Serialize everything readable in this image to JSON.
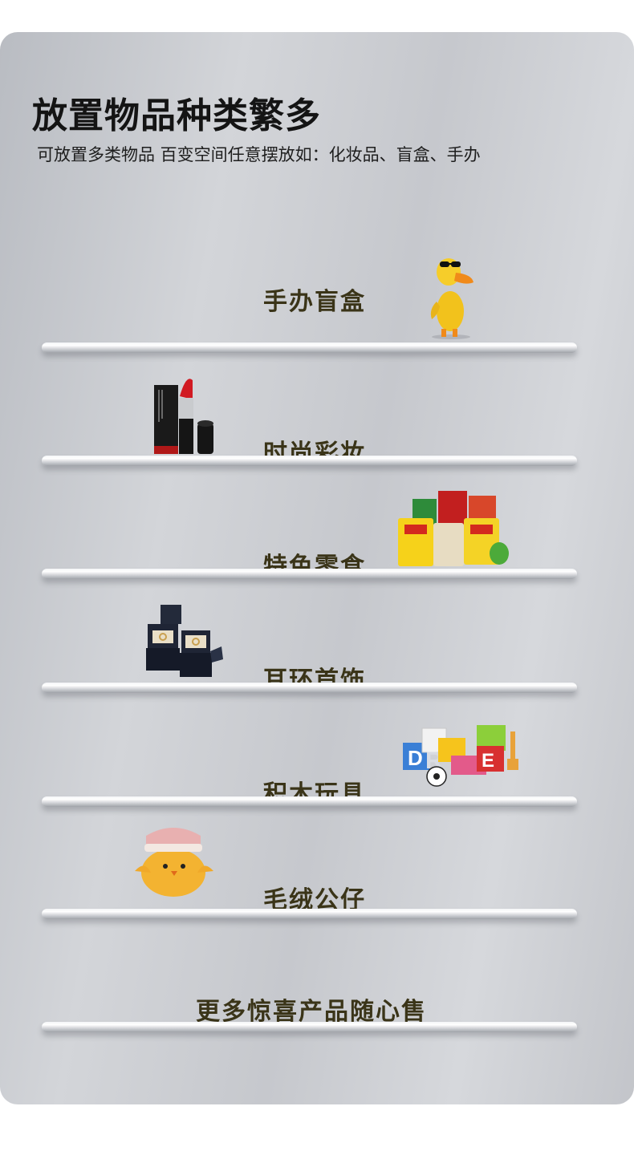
{
  "title": "放置物品种类繁多",
  "subtitle": "可放置多类物品 百变空间任意摆放如：化妆品、盲盒、手办",
  "items": [
    {
      "label": "手办盲盒",
      "icon": "duck-figure-icon"
    },
    {
      "label": "时尚彩妆",
      "icon": "lipstick-icon"
    },
    {
      "label": "特色零食",
      "icon": "snacks-icon"
    },
    {
      "label": "耳环首饰",
      "icon": "jewelry-box-icon"
    },
    {
      "label": "积木玩具",
      "icon": "toy-blocks-icon"
    },
    {
      "label": "毛绒公仔",
      "icon": "plush-chick-icon"
    },
    {
      "label": "更多惊喜产品随心售"
    }
  ]
}
